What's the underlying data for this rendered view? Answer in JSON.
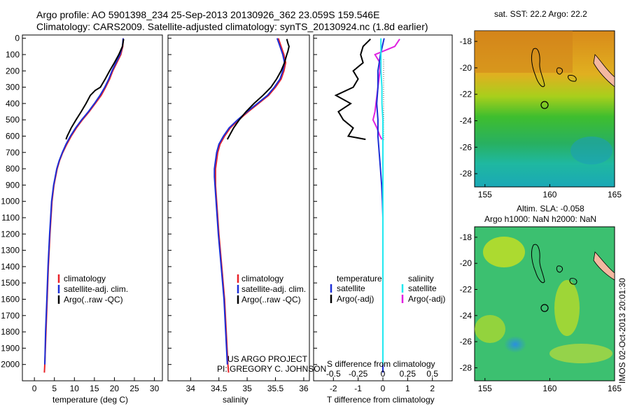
{
  "header": {
    "line1": "Argo profile: AO 5901398_234 25-Sep-2013 20130926_362 23.059S 159.546E",
    "line2": "Climatology: CARS2009. Satellite-adjusted climatology: synTS_20130924.nc (1.8d earlier)"
  },
  "project": {
    "line1": "US ARGO PROJECT",
    "line2": "PI: GREGORY C. JOHNSON"
  },
  "colors": {
    "climatology": "#e8232a",
    "satellite": "#1c2fd6",
    "argo_temp": "#000000",
    "argo_sal": "#e020e0",
    "sat_sal": "#20e8f0"
  },
  "panels": {
    "temperature": {
      "xlabel": "temperature (deg C)",
      "xticks": [
        "0",
        "5",
        "10",
        "15",
        "20",
        "25",
        "30"
      ],
      "legend": [
        "climatology",
        "satellite-adj. clim.",
        "Argo(..raw -QC)"
      ]
    },
    "salinity": {
      "xlabel": "salinity",
      "xticks": [
        "34",
        "34.5",
        "35",
        "35.5",
        "36"
      ],
      "legend": [
        "climatology",
        "satellite-adj. clim.",
        "Argo(..raw -QC)"
      ]
    },
    "difference": {
      "xlabel": "T difference from climatology",
      "top_axis_label": "S difference from climatology",
      "xticks_T": [
        "-2",
        "-1",
        "0",
        "1",
        "2"
      ],
      "xticks_S": [
        "-0.5",
        "-0.25",
        "0",
        "0.25",
        "0.5"
      ],
      "legend_temp_title": "temperature",
      "legend_sal_title": "salinity",
      "legend_temp_items": [
        "satellite",
        "Argo(-adj)"
      ],
      "legend_sal_items": [
        "satellite",
        "Argo(-adj)"
      ]
    },
    "depth_ticks": [
      "0",
      "100",
      "200",
      "300",
      "400",
      "500",
      "600",
      "700",
      "800",
      "900",
      "1000",
      "1100",
      "1200",
      "1300",
      "1400",
      "1500",
      "1600",
      "1700",
      "1800",
      "1900",
      "2000"
    ]
  },
  "maps": {
    "sst": {
      "title": "sat. SST: 22.2 Argo: 22.2",
      "lat_ticks": [
        "-18",
        "-20",
        "-22",
        "-24",
        "-26",
        "-28"
      ],
      "lon_ticks": [
        "155",
        "160",
        "165"
      ]
    },
    "sla": {
      "title_line1": "Altim. SLA: -0.058",
      "title_line2": "Argo h1000: NaN h2000: NaN",
      "lat_ticks": [
        "-18",
        "-20",
        "-22",
        "-24",
        "-26",
        "-28"
      ],
      "lon_ticks": [
        "155",
        "160",
        "165"
      ]
    }
  },
  "stamp": "IMOS 02-Oct-2013 20:01:30",
  "chart_data": [
    {
      "type": "line",
      "title": "",
      "xlabel": "temperature (deg C)",
      "ylabel": "",
      "xlim": [
        -3,
        32
      ],
      "ylim": [
        2100,
        0
      ],
      "series": [
        {
          "name": "climatology",
          "depth": [
            0,
            50,
            100,
            150,
            200,
            250,
            300,
            350,
            400,
            450,
            500,
            550,
            600,
            650,
            700,
            750,
            800,
            900,
            1000,
            1200,
            1400,
            1600,
            1800,
            2000,
            2050
          ],
          "values": [
            22.2,
            22.1,
            21.6,
            20.6,
            19.6,
            18.8,
            17.8,
            16.7,
            15.2,
            13.7,
            12.0,
            10.5,
            9.2,
            8.1,
            7.1,
            6.3,
            5.7,
            4.9,
            4.4,
            3.9,
            3.5,
            3.2,
            2.9,
            2.6,
            2.5
          ]
        },
        {
          "name": "satellite-adj. clim.",
          "depth": [
            0,
            50,
            100,
            150,
            200,
            250,
            300,
            350,
            400,
            450,
            500,
            550,
            600,
            650,
            700,
            750,
            800,
            900,
            1000,
            1200,
            1400,
            1600,
            1800,
            2000
          ],
          "values": [
            22.2,
            22.0,
            21.4,
            20.4,
            19.4,
            18.6,
            17.6,
            16.4,
            15.0,
            13.5,
            11.8,
            10.3,
            9.0,
            7.9,
            7.0,
            6.2,
            5.6,
            4.8,
            4.3,
            3.8,
            3.4,
            3.1,
            2.8,
            2.6
          ]
        },
        {
          "name": "Argo(..raw -QC)",
          "depth": [
            5,
            50,
            100,
            150,
            200,
            250,
            300,
            320,
            350,
            400,
            450,
            500,
            550,
            600,
            620
          ],
          "values": [
            22.3,
            22.0,
            21.1,
            20.0,
            18.8,
            17.7,
            16.5,
            15.2,
            14.0,
            12.9,
            11.7,
            10.4,
            9.2,
            8.2,
            7.9
          ]
        }
      ]
    },
    {
      "type": "line",
      "title": "",
      "xlabel": "salinity",
      "ylabel": "",
      "xlim": [
        33.6,
        36.1
      ],
      "ylim": [
        2100,
        0
      ],
      "series": [
        {
          "name": "climatology",
          "depth": [
            0,
            50,
            100,
            150,
            200,
            250,
            300,
            350,
            400,
            450,
            500,
            550,
            600,
            650,
            700,
            750,
            800,
            850,
            900,
            1000,
            1200,
            1400,
            1600,
            1800,
            2000,
            2050
          ],
          "values": [
            35.55,
            35.6,
            35.65,
            35.68,
            35.65,
            35.6,
            35.5,
            35.38,
            35.2,
            35.02,
            34.85,
            34.7,
            34.6,
            34.52,
            34.48,
            34.46,
            34.44,
            34.44,
            34.44,
            34.46,
            34.5,
            34.55,
            34.6,
            34.63,
            34.66,
            34.67
          ]
        },
        {
          "name": "satellite-adj. clim.",
          "depth": [
            0,
            50,
            100,
            150,
            200,
            250,
            300,
            350,
            400,
            450,
            500,
            550,
            600,
            650,
            700,
            750,
            800,
            850,
            900,
            1000,
            1200,
            1400,
            1600,
            1800,
            2000
          ],
          "values": [
            35.53,
            35.58,
            35.63,
            35.66,
            35.63,
            35.58,
            35.48,
            35.36,
            35.18,
            35.0,
            34.83,
            34.68,
            34.58,
            34.5,
            34.46,
            34.44,
            34.42,
            34.42,
            34.43,
            34.45,
            34.49,
            34.54,
            34.59,
            34.62,
            34.65
          ]
        },
        {
          "name": "Argo(..raw -QC)",
          "depth": [
            5,
            30,
            50,
            80,
            100,
            150,
            200,
            250,
            300,
            350,
            400,
            450,
            500,
            550,
            600,
            620
          ],
          "values": [
            35.7,
            35.72,
            35.74,
            35.72,
            35.7,
            35.66,
            35.6,
            35.52,
            35.42,
            35.28,
            35.12,
            34.98,
            34.86,
            34.76,
            34.68,
            34.65
          ]
        }
      ]
    },
    {
      "type": "line",
      "title": "",
      "xlabel": "T difference from climatology",
      "ylabel": "",
      "xlim": [
        -2.8,
        2.8
      ],
      "ylim": [
        2100,
        0
      ],
      "series": [
        {
          "name": "temperature satellite",
          "depth": [
            0,
            100,
            200,
            300,
            400,
            500,
            600,
            700,
            800,
            900,
            1000,
            1100,
            1200,
            1400,
            1600,
            1800,
            2000,
            2050
          ],
          "values": [
            0.05,
            -0.1,
            -0.2,
            -0.2,
            -0.25,
            -0.2,
            -0.2,
            -0.15,
            -0.1,
            -0.05,
            -0.02,
            0,
            0,
            0,
            0,
            0,
            0,
            0
          ]
        },
        {
          "name": "temperature Argo(-adj)",
          "depth": [
            5,
            50,
            100,
            150,
            200,
            250,
            300,
            350,
            400,
            450,
            500,
            550,
            600,
            620
          ],
          "values": [
            -0.5,
            -0.8,
            -0.9,
            -0.8,
            -1.2,
            -1.0,
            -1.2,
            -1.9,
            -1.3,
            -1.8,
            -1.6,
            -1.2,
            -1.4,
            -0.7
          ]
        },
        {
          "name": "salinity satellite",
          "depth": [
            0,
            100,
            200,
            300,
            400,
            500,
            600,
            700,
            800,
            900,
            1000,
            1200,
            1400,
            1600,
            1800,
            2000
          ],
          "values": [
            -0.02,
            -0.02,
            -0.02,
            -0.01,
            -0.01,
            0,
            0,
            0,
            0,
            0,
            0,
            0,
            0,
            0,
            0,
            0
          ]
        },
        {
          "name": "salinity Argo(-adj)",
          "depth": [
            5,
            50,
            100,
            150,
            200,
            250,
            300,
            350,
            400,
            450,
            500,
            550,
            600,
            620
          ],
          "values": [
            0.17,
            0.12,
            -0.08,
            -0.03,
            -0.03,
            -0.04,
            -0.05,
            -0.06,
            -0.07,
            -0.08,
            -0.1,
            -0.06,
            -0.03,
            -0.01
          ]
        }
      ]
    }
  ]
}
